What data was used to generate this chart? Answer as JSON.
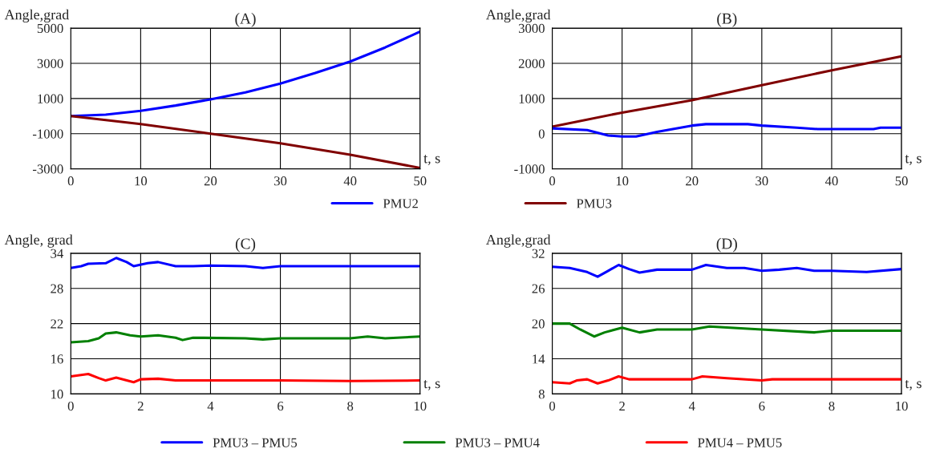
{
  "chart_data": [
    {
      "type": "line",
      "title": "(A)",
      "ylabel": "Angle,grad",
      "xlabel": "t, s",
      "xlim": [
        0,
        50
      ],
      "xticks": [
        0,
        10,
        20,
        30,
        40,
        50
      ],
      "ylim": [
        -3000,
        5000
      ],
      "yticks": [
        -3000,
        -1000,
        1000,
        3000,
        5000
      ],
      "grid": true,
      "legend": "bottom",
      "series": [
        {
          "name": "PMU2",
          "color": "#0000ff",
          "x": [
            0,
            5,
            10,
            15,
            20,
            25,
            30,
            35,
            40,
            45,
            50
          ],
          "values": [
            0,
            80,
            300,
            600,
            950,
            1350,
            1850,
            2450,
            3100,
            3900,
            4800
          ]
        },
        {
          "name": "PMU3",
          "color": "#800000",
          "x": [
            0,
            10,
            20,
            30,
            40,
            50
          ],
          "values": [
            0,
            -450,
            -1000,
            -1550,
            -2200,
            -2950
          ]
        }
      ]
    },
    {
      "type": "line",
      "title": "(B)",
      "ylabel": "Angle,grad",
      "xlabel": "t, s",
      "xlim": [
        0,
        50
      ],
      "xticks": [
        0,
        10,
        20,
        30,
        40,
        50
      ],
      "ylim": [
        -1000,
        3000
      ],
      "yticks": [
        -1000,
        0,
        1000,
        2000,
        3000
      ],
      "grid": true,
      "series": [
        {
          "color": "#800000",
          "x": [
            0,
            10,
            20,
            30,
            40,
            50
          ],
          "values": [
            200,
            600,
            950,
            1380,
            1800,
            2200
          ]
        },
        {
          "color": "#0000ff",
          "x": [
            0,
            5,
            8,
            10,
            12,
            15,
            20,
            22,
            28,
            30,
            35,
            38,
            46,
            47,
            50
          ],
          "values": [
            150,
            100,
            -50,
            -80,
            -80,
            50,
            230,
            270,
            270,
            230,
            170,
            130,
            130,
            170,
            170
          ]
        }
      ]
    },
    {
      "type": "line",
      "title": "(C)",
      "ylabel": "Angle, grad",
      "xlabel": "t, s",
      "xlim": [
        0,
        10
      ],
      "xticks": [
        0,
        2,
        4,
        6,
        8,
        10
      ],
      "ylim": [
        10,
        34
      ],
      "yticks": [
        10,
        16,
        22,
        28,
        34
      ],
      "grid": true,
      "legend": "bottom",
      "series": [
        {
          "name": "PMU3 – PMU5",
          "color": "#0000ff",
          "x": [
            0,
            0.3,
            0.5,
            1,
            1.3,
            1.6,
            1.8,
            2.2,
            2.5,
            3,
            3.5,
            4,
            5,
            5.5,
            6,
            7,
            8,
            10
          ],
          "values": [
            31.5,
            31.8,
            32.2,
            32.3,
            33.2,
            32.5,
            31.8,
            32.3,
            32.5,
            31.8,
            31.8,
            31.9,
            31.8,
            31.5,
            31.8,
            31.8,
            31.8,
            31.8
          ]
        },
        {
          "name": "PMU3 – PMU4",
          "color": "#008000",
          "x": [
            0,
            0.5,
            0.8,
            1,
            1.3,
            1.7,
            2,
            2.5,
            3,
            3.2,
            3.5,
            5,
            5.5,
            6,
            8,
            8.5,
            9,
            10
          ],
          "values": [
            18.8,
            19,
            19.5,
            20.3,
            20.5,
            20,
            19.8,
            20,
            19.6,
            19.2,
            19.6,
            19.5,
            19.3,
            19.5,
            19.5,
            19.8,
            19.5,
            19.8
          ]
        },
        {
          "name": "PMU4 – PMU5",
          "color": "#ff0000",
          "x": [
            0,
            0.5,
            0.8,
            1,
            1.3,
            1.8,
            2,
            2.5,
            3,
            5,
            6,
            8,
            10
          ],
          "values": [
            13,
            13.4,
            12.7,
            12.3,
            12.8,
            12,
            12.5,
            12.6,
            12.3,
            12.3,
            12.3,
            12.2,
            12.3
          ]
        }
      ]
    },
    {
      "type": "line",
      "title": "(D)",
      "ylabel": "Angle,grad",
      "xlabel": "t, s",
      "xlim": [
        0,
        10
      ],
      "xticks": [
        0,
        2,
        4,
        6,
        8,
        10
      ],
      "ylim": [
        8,
        32
      ],
      "yticks": [
        8,
        14,
        20,
        26,
        32
      ],
      "grid": true,
      "series": [
        {
          "color": "#0000ff",
          "x": [
            0,
            0.5,
            1,
            1.3,
            1.6,
            1.9,
            2.2,
            2.5,
            3,
            4,
            4.4,
            5,
            5.5,
            6,
            6.5,
            7,
            7.5,
            8,
            9,
            10
          ],
          "values": [
            29.7,
            29.5,
            28.8,
            28,
            29,
            30,
            29.3,
            28.7,
            29.2,
            29.2,
            30,
            29.5,
            29.5,
            29,
            29.2,
            29.5,
            29,
            29,
            28.8,
            29.3
          ]
        },
        {
          "color": "#008000",
          "x": [
            0,
            0.5,
            0.8,
            1.2,
            1.5,
            2,
            2.5,
            3,
            4,
            4.5,
            6,
            7.5,
            8,
            10
          ],
          "values": [
            20,
            20,
            19,
            17.8,
            18.5,
            19.3,
            18.5,
            19,
            19,
            19.5,
            19,
            18.5,
            18.8,
            18.8
          ]
        },
        {
          "color": "#ff0000",
          "x": [
            0,
            0.5,
            0.7,
            1,
            1.3,
            1.6,
            1.9,
            2.2,
            4,
            4.3,
            5,
            6,
            6.3,
            8,
            10
          ],
          "values": [
            10,
            9.8,
            10.3,
            10.5,
            9.8,
            10.3,
            11,
            10.5,
            10.5,
            11,
            10.7,
            10.3,
            10.5,
            10.5,
            10.5
          ]
        }
      ]
    }
  ]
}
